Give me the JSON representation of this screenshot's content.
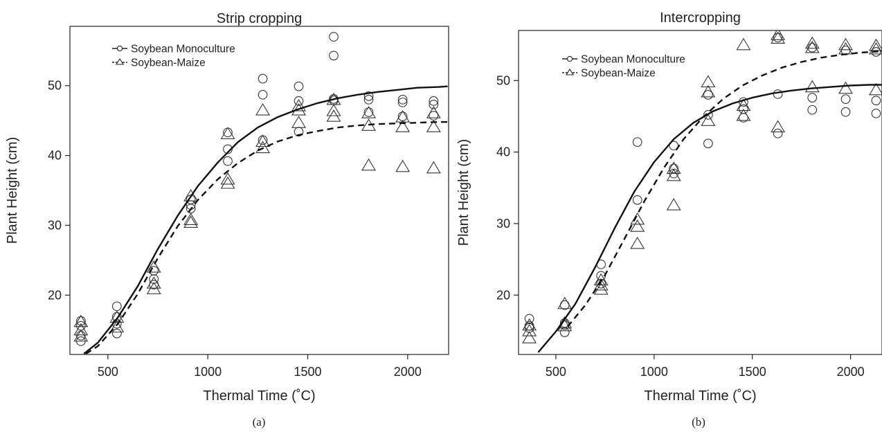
{
  "chart_data": [
    {
      "type": "scatter",
      "title": "Strip cropping",
      "caption": "(a)",
      "xlabel": "Thermal Time (˚C)",
      "ylabel": "Plant Height (cm)",
      "xlim": [
        310,
        2205
      ],
      "ylim": [
        11.5,
        58.5
      ],
      "xticks": [
        500,
        1000,
        1500,
        2000
      ],
      "yticks": [
        20,
        30,
        40,
        50
      ],
      "legend": "top-left",
      "grid": false,
      "series": [
        {
          "name": "Soybean Monoculture",
          "marker": "circle",
          "line": "solid",
          "points": [
            [
              365,
              16.3
            ],
            [
              365,
              15.6
            ],
            [
              365,
              14.2
            ],
            [
              365,
              13.4
            ],
            [
              545,
              18.4
            ],
            [
              545,
              16.9
            ],
            [
              545,
              15.9
            ],
            [
              545,
              14.5
            ],
            [
              730,
              23.5
            ],
            [
              730,
              22.3
            ],
            [
              730,
              21.5
            ],
            [
              915,
              33.7
            ],
            [
              915,
              32.9
            ],
            [
              915,
              32.4
            ],
            [
              1100,
              43.3
            ],
            [
              1100,
              40.9
            ],
            [
              1100,
              39.2
            ],
            [
              1275,
              51.0
            ],
            [
              1275,
              48.7
            ],
            [
              1275,
              42.2
            ],
            [
              1455,
              49.9
            ],
            [
              1455,
              47.8
            ],
            [
              1455,
              43.4
            ],
            [
              1630,
              57.0
            ],
            [
              1630,
              54.3
            ],
            [
              1630,
              48.1
            ],
            [
              1630,
              47.9
            ],
            [
              1805,
              48.5
            ],
            [
              1805,
              48.0
            ],
            [
              1805,
              46.2
            ],
            [
              1975,
              48.0
            ],
            [
              1975,
              47.6
            ],
            [
              1975,
              45.6
            ],
            [
              2130,
              47.8
            ],
            [
              2130,
              47.3
            ],
            [
              2130,
              45.7
            ]
          ],
          "fit": [
            [
              380,
              11.6
            ],
            [
              450,
              13.2
            ],
            [
              550,
              16.8
            ],
            [
              650,
              21.3
            ],
            [
              750,
              26.6
            ],
            [
              850,
              31.4
            ],
            [
              950,
              35.6
            ],
            [
              1050,
              39.0
            ],
            [
              1150,
              41.9
            ],
            [
              1250,
              44.0
            ],
            [
              1350,
              45.5
            ],
            [
              1450,
              46.6
            ],
            [
              1550,
              47.5
            ],
            [
              1650,
              48.2
            ],
            [
              1750,
              48.7
            ],
            [
              1850,
              49.1
            ],
            [
              1950,
              49.4
            ],
            [
              2050,
              49.7
            ],
            [
              2150,
              49.8
            ],
            [
              2200,
              49.9
            ]
          ]
        },
        {
          "name": "Soybean-Maize",
          "marker": "triangle",
          "line": "dashed",
          "points": [
            [
              365,
              16.1
            ],
            [
              365,
              14.9
            ],
            [
              365,
              14.0
            ],
            [
              545,
              16.7
            ],
            [
              545,
              15.3
            ],
            [
              730,
              23.9
            ],
            [
              730,
              21.6
            ],
            [
              730,
              20.8
            ],
            [
              915,
              34.1
            ],
            [
              915,
              30.7
            ],
            [
              915,
              30.3
            ],
            [
              1100,
              43.0
            ],
            [
              1100,
              36.5
            ],
            [
              1100,
              35.9
            ],
            [
              1275,
              46.4
            ],
            [
              1275,
              41.9
            ],
            [
              1275,
              41.0
            ],
            [
              1455,
              47.0
            ],
            [
              1455,
              46.4
            ],
            [
              1455,
              44.6
            ],
            [
              1630,
              47.9
            ],
            [
              1630,
              46.3
            ],
            [
              1630,
              45.5
            ],
            [
              1805,
              46.0
            ],
            [
              1805,
              44.2
            ],
            [
              1805,
              38.5
            ],
            [
              1975,
              45.4
            ],
            [
              1975,
              44.0
            ],
            [
              1975,
              38.3
            ],
            [
              2130,
              46.0
            ],
            [
              2130,
              44.0
            ],
            [
              2130,
              38.1
            ]
          ],
          "fit": [
            [
              390,
              11.6
            ],
            [
              450,
              12.7
            ],
            [
              550,
              15.9
            ],
            [
              650,
              20.2
            ],
            [
              750,
              25.3
            ],
            [
              850,
              29.9
            ],
            [
              950,
              33.6
            ],
            [
              1050,
              36.6
            ],
            [
              1150,
              38.9
            ],
            [
              1250,
              40.7
            ],
            [
              1350,
              42.0
            ],
            [
              1450,
              42.9
            ],
            [
              1550,
              43.5
            ],
            [
              1650,
              44.0
            ],
            [
              1750,
              44.3
            ],
            [
              1850,
              44.5
            ],
            [
              1950,
              44.6
            ],
            [
              2050,
              44.7
            ],
            [
              2150,
              44.8
            ],
            [
              2200,
              44.8
            ]
          ]
        }
      ]
    },
    {
      "type": "scatter",
      "title": "Intercropping",
      "caption": "(b)",
      "xlabel": "Thermal Time (˚C)",
      "ylabel": "Plant Height (cm)",
      "xlim": [
        310,
        2160
      ],
      "ylim": [
        11.7,
        57.0
      ],
      "xticks": [
        500,
        1000,
        1500,
        2000
      ],
      "yticks": [
        20,
        30,
        40,
        50
      ],
      "legend": "top-left",
      "grid": false,
      "series": [
        {
          "name": "Soybean Monoculture",
          "marker": "circle",
          "line": "solid",
          "points": [
            [
              365,
              16.7
            ],
            [
              365,
              15.7
            ],
            [
              365,
              15.4
            ],
            [
              545,
              18.6
            ],
            [
              545,
              16.1
            ],
            [
              545,
              15.8
            ],
            [
              545,
              14.8
            ],
            [
              730,
              24.3
            ],
            [
              730,
              22.7
            ],
            [
              730,
              21.6
            ],
            [
              915,
              41.4
            ],
            [
              915,
              33.3
            ],
            [
              1100,
              40.9
            ],
            [
              1100,
              37.7
            ],
            [
              1100,
              37.0
            ],
            [
              1275,
              48.0
            ],
            [
              1275,
              45.2
            ],
            [
              1275,
              41.2
            ],
            [
              1455,
              47.0
            ],
            [
              1455,
              46.0
            ],
            [
              1455,
              44.8
            ],
            [
              1630,
              56.0
            ],
            [
              1630,
              48.1
            ],
            [
              1630,
              42.6
            ],
            [
              1805,
              54.6
            ],
            [
              1805,
              47.6
            ],
            [
              1805,
              45.9
            ],
            [
              1975,
              54.2
            ],
            [
              1975,
              47.4
            ],
            [
              1975,
              45.6
            ],
            [
              2130,
              54.0
            ],
            [
              2130,
              47.2
            ],
            [
              2130,
              45.4
            ]
          ],
          "fit": [
            [
              410,
              12.0
            ],
            [
              500,
              14.9
            ],
            [
              600,
              18.8
            ],
            [
              700,
              23.9
            ],
            [
              800,
              29.4
            ],
            [
              900,
              34.5
            ],
            [
              1000,
              38.6
            ],
            [
              1100,
              41.8
            ],
            [
              1200,
              44.1
            ],
            [
              1300,
              45.7
            ],
            [
              1400,
              46.8
            ],
            [
              1500,
              47.6
            ],
            [
              1600,
              48.2
            ],
            [
              1700,
              48.6
            ],
            [
              1800,
              48.9
            ],
            [
              1900,
              49.1
            ],
            [
              2000,
              49.3
            ],
            [
              2100,
              49.4
            ],
            [
              2160,
              49.4
            ]
          ]
        },
        {
          "name": "Soybean-Maize",
          "marker": "triangle",
          "line": "dashed",
          "points": [
            [
              365,
              15.7
            ],
            [
              365,
              14.9
            ],
            [
              365,
              13.9
            ],
            [
              545,
              18.7
            ],
            [
              545,
              16.0
            ],
            [
              545,
              15.6
            ],
            [
              730,
              22.0
            ],
            [
              730,
              21.3
            ],
            [
              730,
              20.7
            ],
            [
              915,
              30.5
            ],
            [
              915,
              29.5
            ],
            [
              915,
              27.1
            ],
            [
              1100,
              37.6
            ],
            [
              1100,
              36.6
            ],
            [
              1100,
              32.5
            ],
            [
              1275,
              49.7
            ],
            [
              1275,
              48.3
            ],
            [
              1275,
              44.3
            ],
            [
              1455,
              54.9
            ],
            [
              1455,
              46.4
            ],
            [
              1455,
              45.0
            ],
            [
              1630,
              56.3
            ],
            [
              1630,
              55.8
            ],
            [
              1630,
              43.4
            ],
            [
              1805,
              55.1
            ],
            [
              1805,
              54.5
            ],
            [
              1805,
              49.0
            ],
            [
              1975,
              54.9
            ],
            [
              1975,
              54.3
            ],
            [
              1975,
              48.8
            ],
            [
              2130,
              54.8
            ],
            [
              2130,
              54.3
            ],
            [
              2130,
              48.6
            ]
          ],
          "fit": [
            [
              560,
              15.6
            ],
            [
              650,
              18.6
            ],
            [
              750,
              22.8
            ],
            [
              850,
              27.9
            ],
            [
              950,
              33.1
            ],
            [
              1050,
              37.8
            ],
            [
              1150,
              41.8
            ],
            [
              1250,
              44.9
            ],
            [
              1350,
              47.4
            ],
            [
              1450,
              49.3
            ],
            [
              1550,
              50.7
            ],
            [
              1650,
              51.8
            ],
            [
              1750,
              52.6
            ],
            [
              1850,
              53.2
            ],
            [
              1950,
              53.6
            ],
            [
              2050,
              53.9
            ],
            [
              2160,
              54.1
            ]
          ]
        }
      ]
    }
  ]
}
